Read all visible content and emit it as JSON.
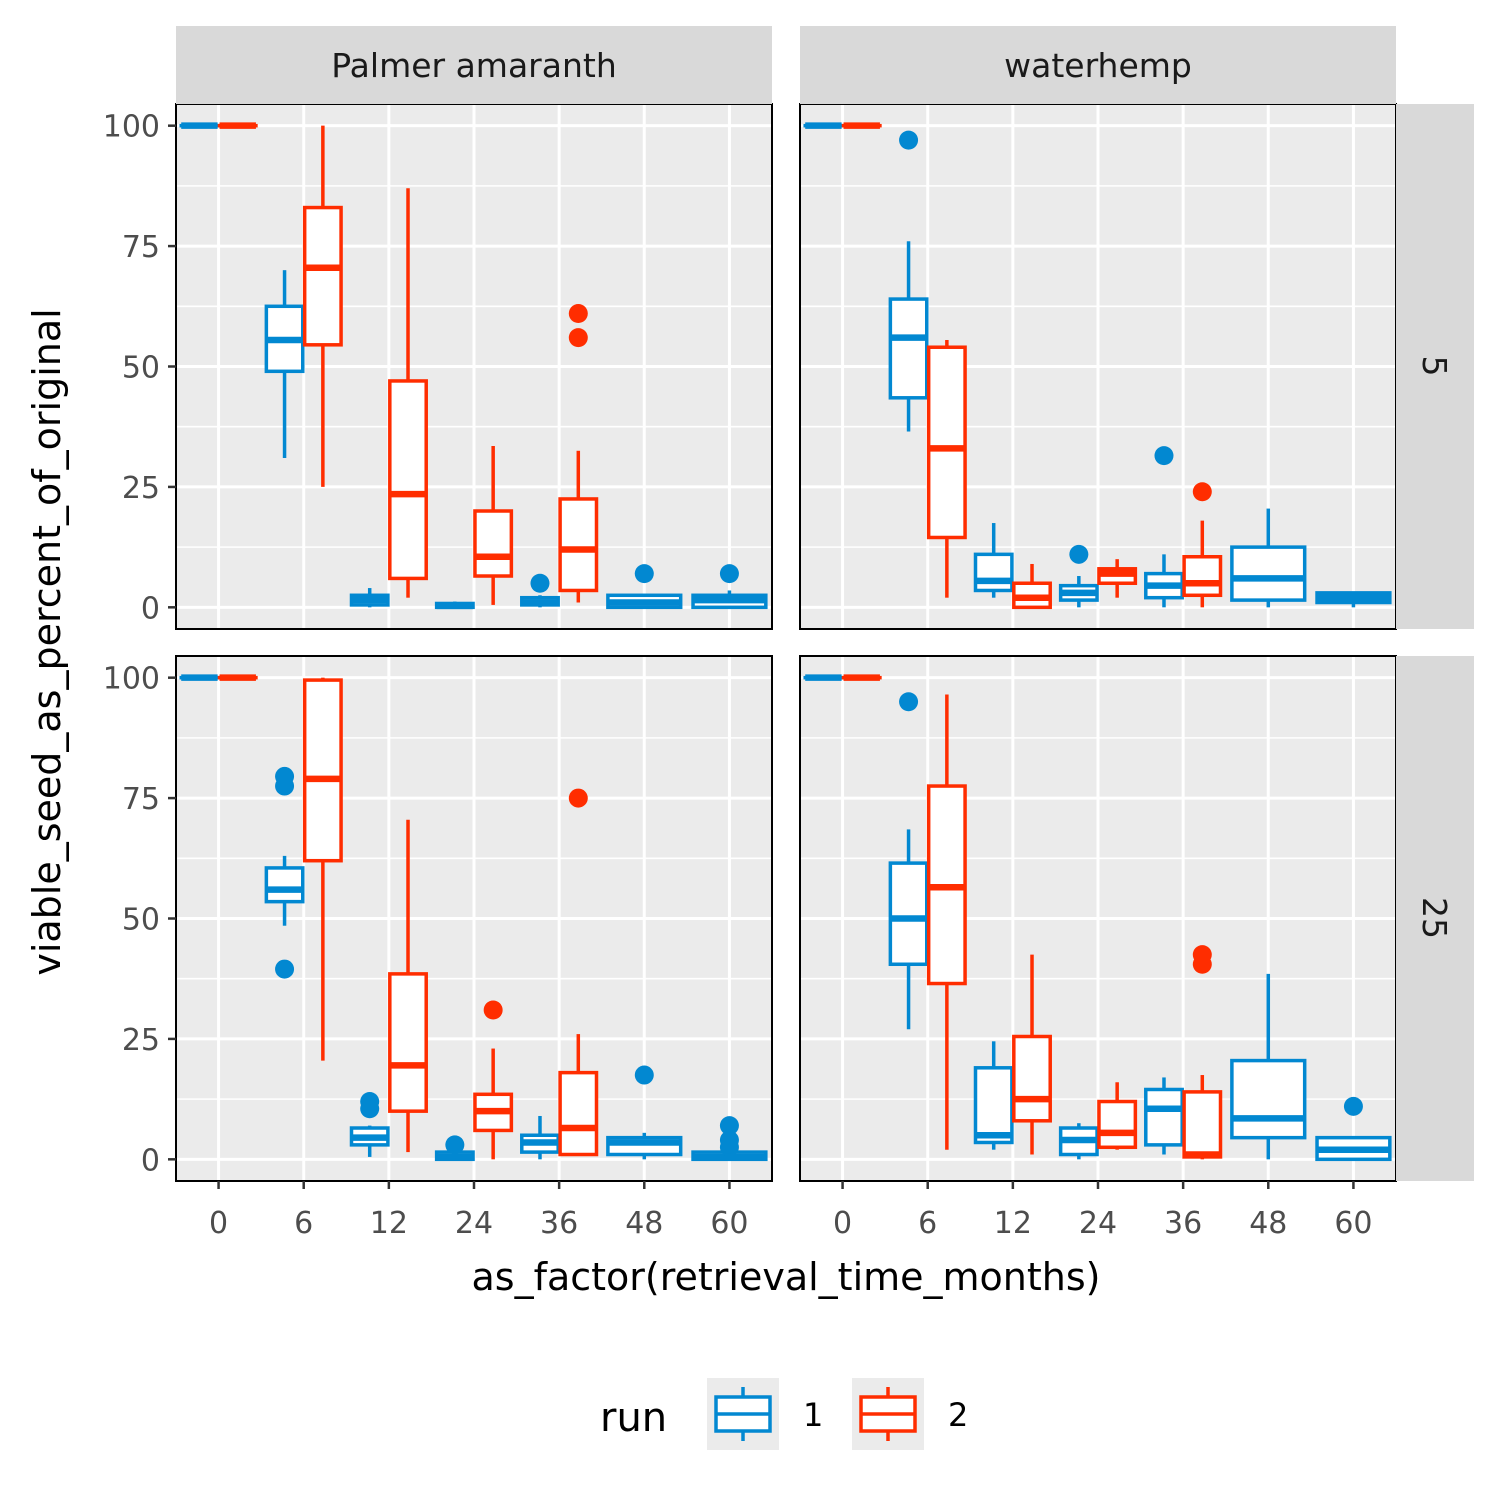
{
  "chart_data": {
    "type": "boxplot",
    "xlabel": "as_factor(retrieval_time_months)",
    "ylabel": "viable_seed_as_percent_of_original",
    "categories": [
      "0",
      "6",
      "12",
      "24",
      "36",
      "48",
      "60"
    ],
    "yticks": [
      0,
      25,
      50,
      75,
      100
    ],
    "ylim": [
      -4.5,
      104.5
    ],
    "grid": true,
    "legend": {
      "title": "run",
      "position": "bottom",
      "entries": [
        {
          "label": "1",
          "color": "#0288d1"
        },
        {
          "label": "2",
          "color": "#ff2d00"
        }
      ]
    },
    "facet_columns": [
      "Palmer amaranth",
      "waterhemp"
    ],
    "facet_rows": [
      "5",
      "25"
    ],
    "panels": [
      {
        "col": "Palmer amaranth",
        "row": "5",
        "boxes": [
          {
            "category": "0",
            "run": "1",
            "lower": 100,
            "q1": 100,
            "median": 100,
            "q3": 100,
            "upper": 100,
            "outliers": []
          },
          {
            "category": "0",
            "run": "2",
            "lower": 100,
            "q1": 100,
            "median": 100,
            "q3": 100,
            "upper": 100,
            "outliers": []
          },
          {
            "category": "6",
            "run": "1",
            "lower": 31,
            "q1": 49,
            "median": 55.5,
            "q3": 62.5,
            "upper": 70,
            "outliers": []
          },
          {
            "category": "6",
            "run": "2",
            "lower": 25,
            "q1": 54.5,
            "median": 70.5,
            "q3": 83,
            "upper": 100,
            "outliers": []
          },
          {
            "category": "12",
            "run": "1",
            "lower": 0,
            "q1": 0.5,
            "median": 1.5,
            "q3": 2.5,
            "upper": 4,
            "outliers": []
          },
          {
            "category": "12",
            "run": "2",
            "lower": 2,
            "q1": 6,
            "median": 23.5,
            "q3": 47,
            "upper": 87,
            "outliers": []
          },
          {
            "category": "24",
            "run": "1",
            "lower": 0,
            "q1": 0,
            "median": 0.3,
            "q3": 0.8,
            "upper": 1.2,
            "outliers": []
          },
          {
            "category": "24",
            "run": "2",
            "lower": 0.5,
            "q1": 6.5,
            "median": 10.5,
            "q3": 20,
            "upper": 33.5,
            "outliers": []
          },
          {
            "category": "36",
            "run": "1",
            "lower": 0,
            "q1": 0.5,
            "median": 1,
            "q3": 2,
            "upper": 2.5,
            "outliers": [
              5
            ]
          },
          {
            "category": "36",
            "run": "2",
            "lower": 1,
            "q1": 3.5,
            "median": 12,
            "q3": 22.5,
            "upper": 32.5,
            "outliers": [
              56,
              61
            ]
          },
          {
            "category": "48",
            "run": "1",
            "lower": 0,
            "q1": 0,
            "median": 1,
            "q3": 2.5,
            "upper": 2.5,
            "outliers": [
              7
            ]
          },
          {
            "category": "60",
            "run": "1",
            "lower": 0,
            "q1": 0,
            "median": 1.5,
            "q3": 2.5,
            "upper": 3.5,
            "outliers": [
              7
            ]
          }
        ]
      },
      {
        "col": "waterhemp",
        "row": "5",
        "boxes": [
          {
            "category": "0",
            "run": "1",
            "lower": 100,
            "q1": 100,
            "median": 100,
            "q3": 100,
            "upper": 100,
            "outliers": []
          },
          {
            "category": "0",
            "run": "2",
            "lower": 100,
            "q1": 100,
            "median": 100,
            "q3": 100,
            "upper": 100,
            "outliers": []
          },
          {
            "category": "6",
            "run": "1",
            "lower": 36.5,
            "q1": 43.5,
            "median": 56,
            "q3": 64,
            "upper": 76,
            "outliers": [
              97
            ]
          },
          {
            "category": "6",
            "run": "2",
            "lower": 2,
            "q1": 14.5,
            "median": 33,
            "q3": 54,
            "upper": 55.5,
            "outliers": []
          },
          {
            "category": "12",
            "run": "1",
            "lower": 2,
            "q1": 3.5,
            "median": 5.5,
            "q3": 11,
            "upper": 17.5,
            "outliers": []
          },
          {
            "category": "12",
            "run": "2",
            "lower": 0,
            "q1": 0,
            "median": 2,
            "q3": 5,
            "upper": 9,
            "outliers": []
          },
          {
            "category": "24",
            "run": "1",
            "lower": 0,
            "q1": 1.5,
            "median": 3,
            "q3": 4.5,
            "upper": 6.5,
            "outliers": [
              11
            ]
          },
          {
            "category": "24",
            "run": "2",
            "lower": 2,
            "q1": 5,
            "median": 7,
            "q3": 8,
            "upper": 10,
            "outliers": []
          },
          {
            "category": "36",
            "run": "1",
            "lower": 0,
            "q1": 2,
            "median": 4.5,
            "q3": 7,
            "upper": 11,
            "outliers": [
              31.5
            ]
          },
          {
            "category": "36",
            "run": "2",
            "lower": 0,
            "q1": 2.5,
            "median": 5,
            "q3": 10.5,
            "upper": 18,
            "outliers": [
              24
            ]
          },
          {
            "category": "48",
            "run": "1",
            "lower": 0,
            "q1": 1.5,
            "median": 6,
            "q3": 12.5,
            "upper": 20.5,
            "outliers": []
          },
          {
            "category": "60",
            "run": "1",
            "lower": 0,
            "q1": 1,
            "median": 2,
            "q3": 3,
            "upper": 3,
            "outliers": []
          }
        ]
      },
      {
        "col": "Palmer amaranth",
        "row": "25",
        "boxes": [
          {
            "category": "0",
            "run": "1",
            "lower": 100,
            "q1": 100,
            "median": 100,
            "q3": 100,
            "upper": 100,
            "outliers": []
          },
          {
            "category": "0",
            "run": "2",
            "lower": 100,
            "q1": 100,
            "median": 100,
            "q3": 100,
            "upper": 100,
            "outliers": []
          },
          {
            "category": "6",
            "run": "1",
            "lower": 48.5,
            "q1": 53.5,
            "median": 56,
            "q3": 60.5,
            "upper": 63,
            "outliers": [
              39.5,
              77.5,
              79.5
            ]
          },
          {
            "category": "6",
            "run": "2",
            "lower": 20.5,
            "q1": 62,
            "median": 79,
            "q3": 99.5,
            "upper": 100,
            "outliers": []
          },
          {
            "category": "12",
            "run": "1",
            "lower": 0.5,
            "q1": 3,
            "median": 4.5,
            "q3": 6.5,
            "upper": 7,
            "outliers": [
              10.5,
              12
            ]
          },
          {
            "category": "12",
            "run": "2",
            "lower": 1.5,
            "q1": 10,
            "median": 19.5,
            "q3": 38.5,
            "upper": 70.5,
            "outliers": []
          },
          {
            "category": "24",
            "run": "1",
            "lower": 0,
            "q1": 0,
            "median": 0.5,
            "q3": 1.5,
            "upper": 2,
            "outliers": [
              3
            ]
          },
          {
            "category": "24",
            "run": "2",
            "lower": 0,
            "q1": 6,
            "median": 10,
            "q3": 13.5,
            "upper": 23,
            "outliers": [
              31
            ]
          },
          {
            "category": "36",
            "run": "1",
            "lower": 0,
            "q1": 1.5,
            "median": 3.5,
            "q3": 5,
            "upper": 9,
            "outliers": []
          },
          {
            "category": "36",
            "run": "2",
            "lower": 1,
            "q1": 1,
            "median": 6.5,
            "q3": 18,
            "upper": 26,
            "outliers": [
              75
            ]
          },
          {
            "category": "48",
            "run": "1",
            "lower": 0,
            "q1": 1,
            "median": 3.5,
            "q3": 4.5,
            "upper": 5.5,
            "outliers": [
              17.5
            ]
          },
          {
            "category": "60",
            "run": "1",
            "lower": 0,
            "q1": 0,
            "median": 0.5,
            "q3": 1.5,
            "upper": 2,
            "outliers": [
              2.5,
              4,
              7
            ]
          }
        ]
      },
      {
        "col": "waterhemp",
        "row": "25",
        "boxes": [
          {
            "category": "0",
            "run": "1",
            "lower": 100,
            "q1": 100,
            "median": 100,
            "q3": 100,
            "upper": 100,
            "outliers": []
          },
          {
            "category": "0",
            "run": "2",
            "lower": 100,
            "q1": 100,
            "median": 100,
            "q3": 100,
            "upper": 100,
            "outliers": []
          },
          {
            "category": "6",
            "run": "1",
            "lower": 27,
            "q1": 40.5,
            "median": 50,
            "q3": 61.5,
            "upper": 68.5,
            "outliers": [
              95
            ]
          },
          {
            "category": "6",
            "run": "2",
            "lower": 2,
            "q1": 36.5,
            "median": 56.5,
            "q3": 77.5,
            "upper": 96.5,
            "outliers": []
          },
          {
            "category": "12",
            "run": "1",
            "lower": 2,
            "q1": 3.5,
            "median": 5,
            "q3": 19,
            "upper": 24.5,
            "outliers": []
          },
          {
            "category": "12",
            "run": "2",
            "lower": 1,
            "q1": 8,
            "median": 12.5,
            "q3": 25.5,
            "upper": 42.5,
            "outliers": []
          },
          {
            "category": "24",
            "run": "1",
            "lower": 0,
            "q1": 1,
            "median": 4,
            "q3": 6.5,
            "upper": 7.5,
            "outliers": []
          },
          {
            "category": "24",
            "run": "2",
            "lower": 2,
            "q1": 2.5,
            "median": 5.5,
            "q3": 12,
            "upper": 16,
            "outliers": []
          },
          {
            "category": "36",
            "run": "1",
            "lower": 1,
            "q1": 3,
            "median": 10.5,
            "q3": 14.5,
            "upper": 17,
            "outliers": []
          },
          {
            "category": "36",
            "run": "2",
            "lower": 0,
            "q1": 0.5,
            "median": 1,
            "q3": 14,
            "upper": 17.5,
            "outliers": [
              40.5,
              42.5
            ]
          },
          {
            "category": "48",
            "run": "1",
            "lower": 0,
            "q1": 4.5,
            "median": 8.5,
            "q3": 20.5,
            "upper": 38.5,
            "outliers": []
          },
          {
            "category": "60",
            "run": "1",
            "lower": 0,
            "q1": 0,
            "median": 2,
            "q3": 4.5,
            "upper": 4.5,
            "outliers": [
              11
            ]
          }
        ]
      }
    ]
  }
}
